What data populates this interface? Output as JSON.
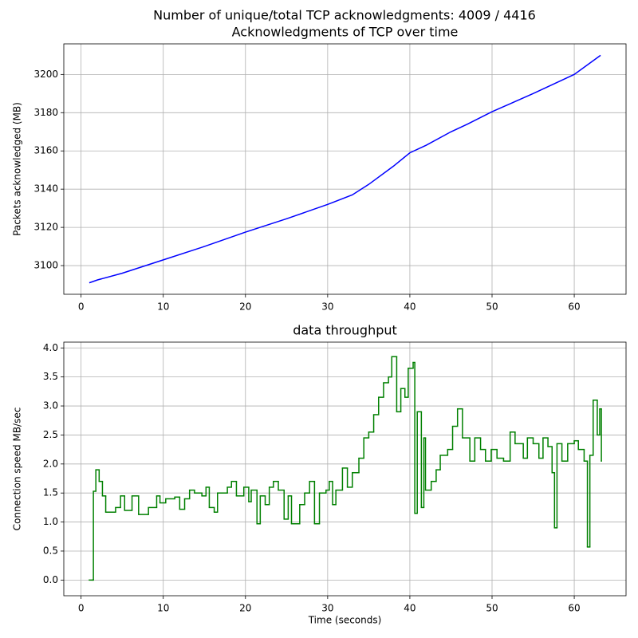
{
  "title": "Number of unique/total TCP acknowledgments: 4009 / 4416",
  "chart_data": [
    {
      "type": "line",
      "title": "Acknowledgments of TCP over time",
      "y_label": "Packets acknowledged (MB)",
      "x": [
        1,
        2,
        5,
        10,
        15,
        20,
        25,
        30,
        33,
        35,
        38,
        40,
        42,
        45,
        47,
        50,
        55,
        58,
        60,
        63.2
      ],
      "values": [
        3091,
        3092.5,
        3096,
        3103,
        3110,
        3117.5,
        3124.5,
        3132,
        3137,
        3142.5,
        3152,
        3159,
        3163,
        3170,
        3174,
        3180.5,
        3190,
        3196,
        3200,
        3210
      ],
      "color": "#0000ff",
      "xlim": [
        -2.1,
        66.3
      ],
      "ylim": [
        3085,
        3216
      ],
      "xticks": [
        0,
        10,
        20,
        30,
        40,
        50,
        60
      ],
      "yticks": [
        3100,
        3120,
        3140,
        3160,
        3180,
        3200
      ],
      "grid": true
    },
    {
      "type": "line",
      "drawstyle": "steps-post",
      "title": "data throughput",
      "x_label": "Time (seconds)",
      "y_label": "Connection speed MB/sec",
      "x": [
        1.0,
        1.4,
        1.5,
        1.8,
        2.2,
        2.6,
        3.0,
        4.2,
        4.8,
        5.3,
        6.2,
        7.0,
        8.2,
        9.2,
        9.6,
        10.3,
        11.4,
        12.0,
        12.6,
        13.2,
        13.8,
        14.7,
        15.2,
        15.6,
        16.2,
        16.6,
        17.8,
        18.3,
        18.9,
        19.8,
        20.4,
        20.7,
        21.4,
        21.8,
        22.4,
        22.9,
        23.4,
        24.0,
        24.7,
        25.2,
        25.6,
        26.6,
        27.2,
        27.8,
        28.4,
        29.0,
        29.8,
        30.2,
        30.6,
        31.0,
        31.8,
        32.4,
        33.0,
        33.8,
        34.4,
        35.0,
        35.6,
        36.2,
        36.8,
        37.4,
        37.8,
        38.4,
        38.9,
        39.4,
        39.8,
        40.4,
        40.6,
        40.9,
        41.4,
        41.7,
        41.9,
        42.6,
        43.2,
        43.7,
        44.6,
        45.2,
        45.8,
        46.4,
        47.3,
        47.9,
        48.6,
        49.2,
        49.9,
        50.6,
        51.4,
        52.2,
        52.8,
        53.8,
        54.3,
        55.0,
        55.7,
        56.2,
        56.8,
        57.3,
        57.6,
        57.9,
        58.5,
        59.2,
        60.0,
        60.5,
        61.2,
        61.6,
        61.9,
        62.3,
        62.8,
        63.1,
        63.3
      ],
      "values": [
        0,
        0,
        1.53,
        1.9,
        1.7,
        1.45,
        1.17,
        1.25,
        1.45,
        1.2,
        1.45,
        1.13,
        1.25,
        1.45,
        1.33,
        1.4,
        1.43,
        1.22,
        1.4,
        1.55,
        1.5,
        1.45,
        1.6,
        1.25,
        1.17,
        1.5,
        1.6,
        1.7,
        1.45,
        1.6,
        1.35,
        1.55,
        0.97,
        1.45,
        1.3,
        1.6,
        1.7,
        1.55,
        1.05,
        1.45,
        0.97,
        1.3,
        1.5,
        1.7,
        0.97,
        1.5,
        1.55,
        1.7,
        1.3,
        1.55,
        1.93,
        1.6,
        1.85,
        2.1,
        2.45,
        2.55,
        2.85,
        3.15,
        3.4,
        3.5,
        3.85,
        2.9,
        3.3,
        3.15,
        3.65,
        3.75,
        1.15,
        2.9,
        1.25,
        2.45,
        1.55,
        1.7,
        1.9,
        2.15,
        2.25,
        2.65,
        2.95,
        2.45,
        2.05,
        2.45,
        2.25,
        2.05,
        2.25,
        2.1,
        2.05,
        2.55,
        2.35,
        2.1,
        2.45,
        2.35,
        2.1,
        2.45,
        2.3,
        1.85,
        0.9,
        2.35,
        2.05,
        2.35,
        2.4,
        2.25,
        2.05,
        0.57,
        2.15,
        3.1,
        2.5,
        2.95,
        2.05
      ],
      "color": "#008000",
      "xlim": [
        -2.1,
        66.3
      ],
      "ylim": [
        -0.27,
        4.1
      ],
      "xticks": [
        0,
        10,
        20,
        30,
        40,
        50,
        60
      ],
      "yticks": [
        {
          "value": 0,
          "label": "0.0"
        },
        0.5,
        {
          "value": 1,
          "label": "1.0"
        },
        1.5,
        {
          "value": 2,
          "label": "2.0"
        },
        2.5,
        {
          "value": 3,
          "label": "3.0"
        },
        3.5,
        {
          "value": 4,
          "label": "4.0"
        }
      ],
      "grid": true
    }
  ]
}
